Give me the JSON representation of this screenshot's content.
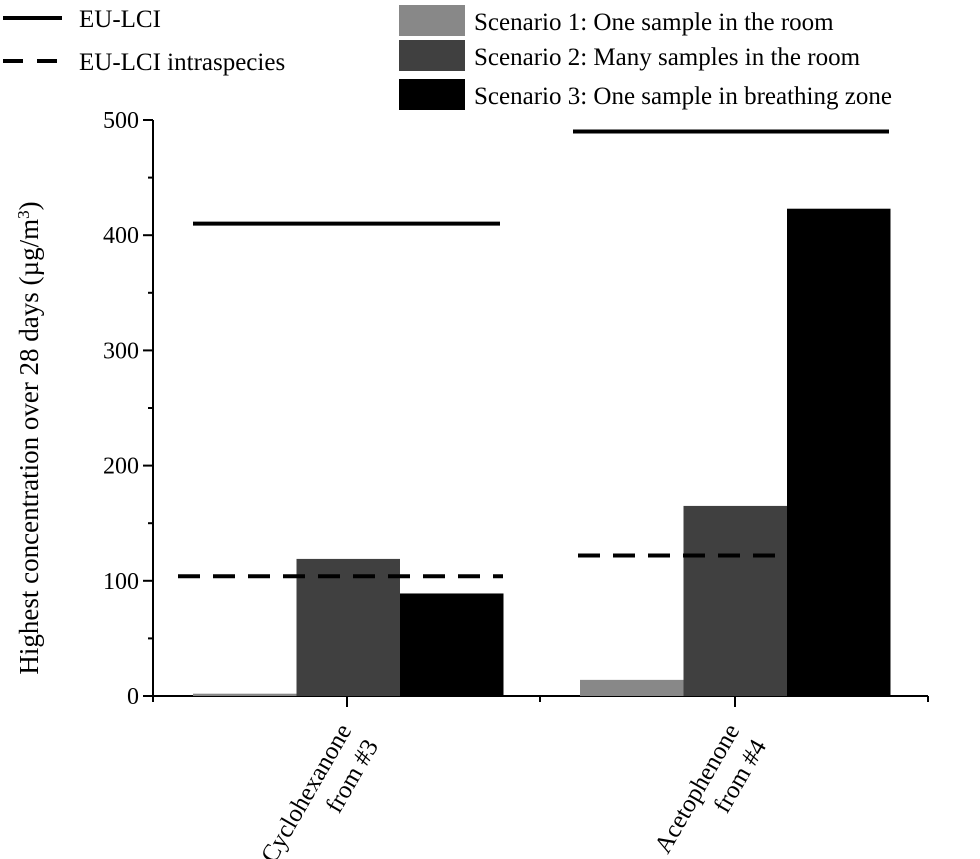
{
  "chart_data": {
    "type": "bar",
    "ylabel": "Highest concentration over 28 days (µg/m³)",
    "ylabel_main": "Highest concentration over 28 days (µg/m",
    "ylabel_sup": "3",
    "ylabel_close": ")",
    "ylim": [
      0,
      500
    ],
    "yticks": [
      "0",
      "100",
      "200",
      "300",
      "400",
      "500"
    ],
    "categories": [
      {
        "line1": "Cyclohexanone",
        "line2": "from #3"
      },
      {
        "line1": "Acetophenone",
        "line2": "from #4"
      }
    ],
    "series": [
      {
        "name": "Scenario 1: One sample in the room",
        "color": "#888888",
        "values": [
          2,
          14
        ]
      },
      {
        "name": "Scenario 2: Many samples in the room",
        "color": "#404040",
        "values": [
          119,
          165
        ]
      },
      {
        "name": "Scenario 3: One sample in breathing zone",
        "color": "#000000",
        "values": [
          89,
          423
        ]
      }
    ],
    "reference_lines": [
      {
        "name": "EU-LCI",
        "style": "solid",
        "values": [
          410,
          490
        ]
      },
      {
        "name": "EU-LCI intraspecies",
        "style": "dashed",
        "values": [
          104,
          122
        ]
      }
    ],
    "legend_placement": "top"
  }
}
